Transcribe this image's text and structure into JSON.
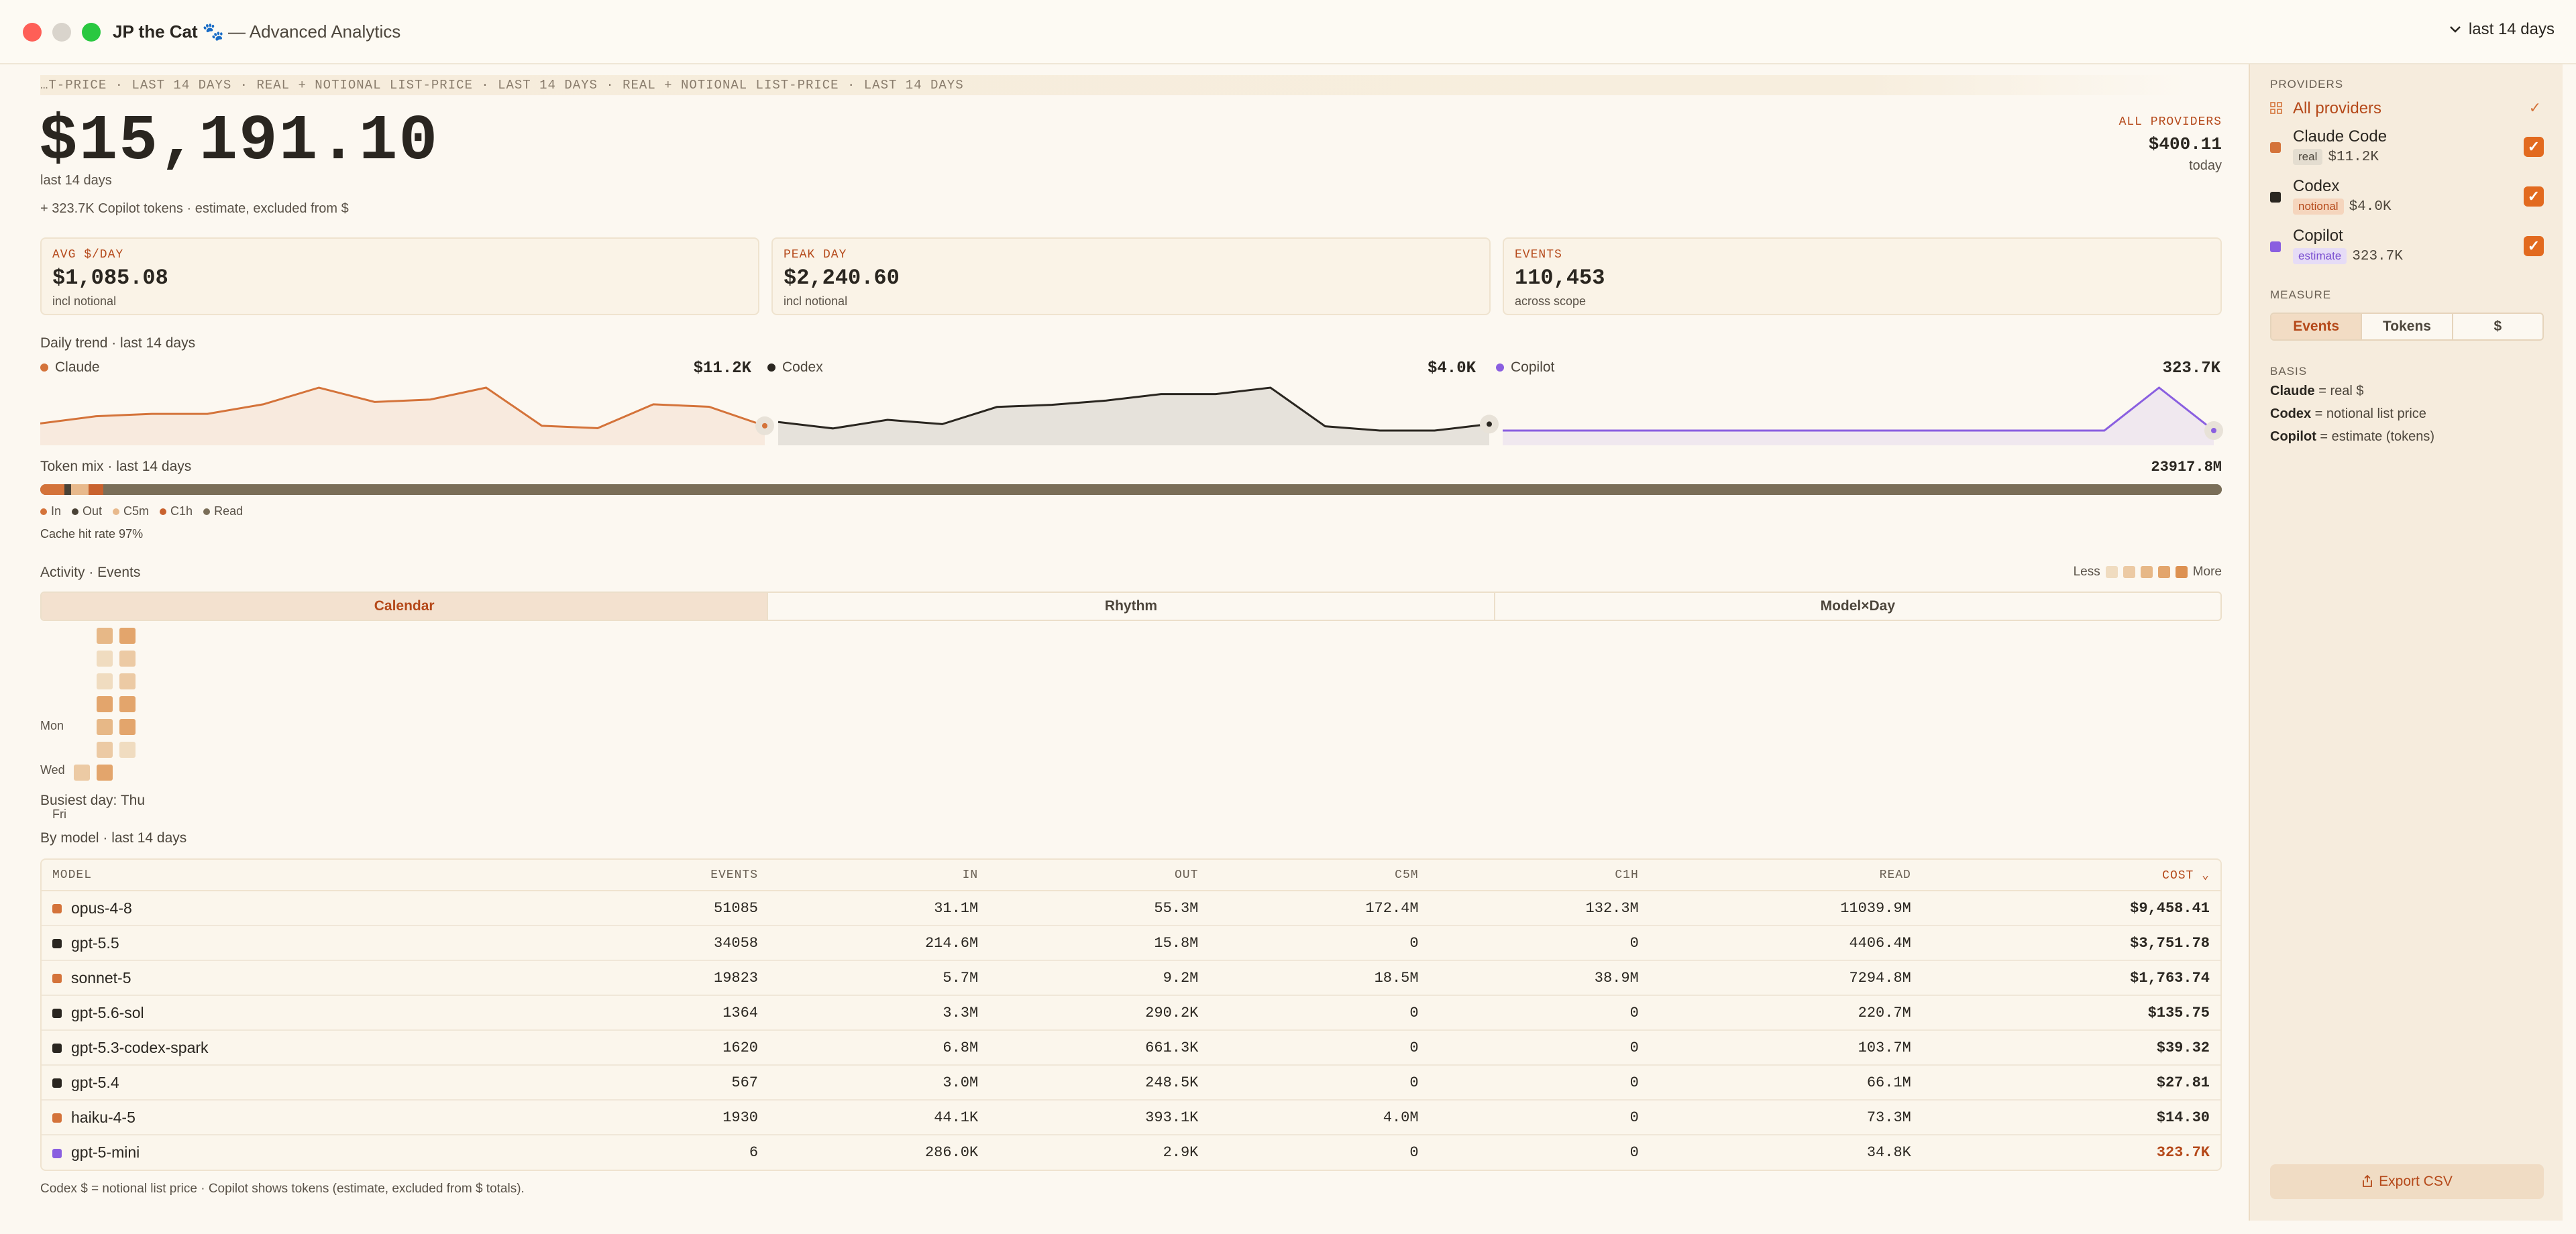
{
  "window": {
    "title": "JP the Cat 🐾",
    "subtitle": "— Advanced Analytics",
    "range_label": "last 14 days"
  },
  "ticker": "…T-PRICE · LAST 14 DAYS  ·  REAL + NOTIONAL LIST-PRICE · LAST 14 DAYS  ·  REAL + NOTIONAL LIST-PRICE · LAST 14 DAYS",
  "hero": {
    "total": "$15,191.10",
    "period": "last 14 days",
    "copilot_note": "+ 323.7K Copilot tokens · estimate, excluded from $"
  },
  "all_providers": {
    "label": "ALL PROVIDERS",
    "value": "$400.11",
    "sub": "today"
  },
  "kpis": [
    {
      "label": "AVG $/DAY",
      "value": "$1,085.08",
      "sub": "incl notional"
    },
    {
      "label": "PEAK DAY",
      "value": "$2,240.60",
      "sub": "incl notional"
    },
    {
      "label": "EVENTS",
      "value": "110,453",
      "sub": "across scope"
    }
  ],
  "trend": {
    "title": "Daily trend · last 14 days",
    "series": [
      {
        "name": "Claude",
        "total": "$11.2K",
        "color": "#d4733a",
        "values": [
          3,
          6,
          7,
          7,
          11,
          18,
          12,
          13,
          18,
          2,
          1,
          11,
          10,
          2
        ]
      },
      {
        "name": "Codex",
        "total": "$4.0K",
        "color": "#2a2620",
        "values": [
          4,
          1,
          5,
          3,
          11,
          12,
          14,
          17,
          17,
          20,
          2,
          0,
          0,
          3
        ]
      },
      {
        "name": "Copilot",
        "total": "323.7K",
        "color": "#8a5fe0",
        "values": [
          0,
          0,
          0,
          0,
          0,
          0,
          0,
          0,
          0,
          0,
          0,
          0,
          20,
          0
        ]
      }
    ]
  },
  "token_mix": {
    "title": "Token mix · last 14 days",
    "total": "23917.8M",
    "segments": [
      {
        "name": "In",
        "color": "#d4733a",
        "share": 0.011
      },
      {
        "name": "Out",
        "color": "#4a4236",
        "share": 0.003
      },
      {
        "name": "C5m",
        "color": "#e8b98c",
        "share": 0.008
      },
      {
        "name": "C1h",
        "color": "#c9622e",
        "share": 0.007
      },
      {
        "name": "Read",
        "color": "#7a6e58",
        "share": 0.971
      }
    ],
    "cache_hit": "Cache hit rate 97%"
  },
  "activity": {
    "title": "Activity · Events",
    "less": "Less",
    "more": "More",
    "scale": [
      "#f0dcc0",
      "#eccaa4",
      "#e7b887",
      "#e3a56c",
      "#dd9151"
    ],
    "tabs": [
      "Calendar",
      "Rhythm",
      "Model×Day"
    ],
    "days": [
      "Mon",
      "Wed",
      "Fri"
    ],
    "busiest": "Busiest day: Thu",
    "weeks": [
      [
        null,
        null,
        null,
        null,
        null,
        null,
        1
      ],
      [
        2,
        0,
        0,
        3,
        2,
        1,
        3
      ],
      [
        3,
        1,
        1,
        3,
        3,
        0,
        null
      ]
    ]
  },
  "by_model": {
    "title": "By model · last 14 days",
    "columns": [
      "MODEL",
      "EVENTS",
      "IN",
      "OUT",
      "C5M",
      "C1H",
      "READ",
      "COST ⌄"
    ],
    "rows": [
      {
        "color": "#d4733a",
        "cells": [
          "opus-4-8",
          "51085",
          "31.1M",
          "55.3M",
          "172.4M",
          "132.3M",
          "11039.9M",
          "$9,458.41"
        ]
      },
      {
        "color": "#2a2620",
        "cells": [
          "gpt-5.5",
          "34058",
          "214.6M",
          "15.8M",
          "0",
          "0",
          "4406.4M",
          "$3,751.78"
        ]
      },
      {
        "color": "#d4733a",
        "cells": [
          "sonnet-5",
          "19823",
          "5.7M",
          "9.2M",
          "18.5M",
          "38.9M",
          "7294.8M",
          "$1,763.74"
        ]
      },
      {
        "color": "#2a2620",
        "cells": [
          "gpt-5.6-sol",
          "1364",
          "3.3M",
          "290.2K",
          "0",
          "0",
          "220.7M",
          "$135.75"
        ]
      },
      {
        "color": "#2a2620",
        "cells": [
          "gpt-5.3-codex-spark",
          "1620",
          "6.8M",
          "661.3K",
          "0",
          "0",
          "103.7M",
          "$39.32"
        ]
      },
      {
        "color": "#2a2620",
        "cells": [
          "gpt-5.4",
          "567",
          "3.0M",
          "248.5K",
          "0",
          "0",
          "66.1M",
          "$27.81"
        ]
      },
      {
        "color": "#d4733a",
        "cells": [
          "haiku-4-5",
          "1930",
          "44.1K",
          "393.1K",
          "4.0M",
          "0",
          "73.3M",
          "$14.30"
        ]
      },
      {
        "color": "#8a5fe0",
        "cells": [
          "gpt-5-mini",
          "6",
          "286.0K",
          "2.9K",
          "0",
          "0",
          "34.8K",
          "323.7K"
        ]
      }
    ],
    "footnote": "Codex $ = notional list price · Copilot shows tokens (estimate, excluded from $ totals)."
  },
  "sidebar": {
    "providers_heading": "PROVIDERS",
    "all_label": "All providers",
    "providers": [
      {
        "name": "Claude Code",
        "badge": "real",
        "badge_bg": "#e4ddd0",
        "badge_fg": "#4d463c",
        "amount": "$11.2K",
        "color": "#d4733a"
      },
      {
        "name": "Codex",
        "badge": "notional",
        "badge_bg": "#f5d5bd",
        "badge_fg": "#b5491a",
        "amount": "$4.0K",
        "color": "#2a2620"
      },
      {
        "name": "Copilot",
        "badge": "estimate",
        "badge_bg": "#e6dcf6",
        "badge_fg": "#7a4fd0",
        "amount": "323.7K",
        "color": "#8a5fe0"
      }
    ],
    "measure_heading": "MEASURE",
    "measure_tabs": [
      "Events",
      "Tokens",
      "$"
    ],
    "basis_heading": "BASIS",
    "basis": [
      {
        "k": "Claude",
        "v": " = real $"
      },
      {
        "k": "Codex",
        "v": " = notional list price"
      },
      {
        "k": "Copilot",
        "v": " = estimate (tokens)"
      }
    ],
    "export_label": "Export CSV"
  }
}
